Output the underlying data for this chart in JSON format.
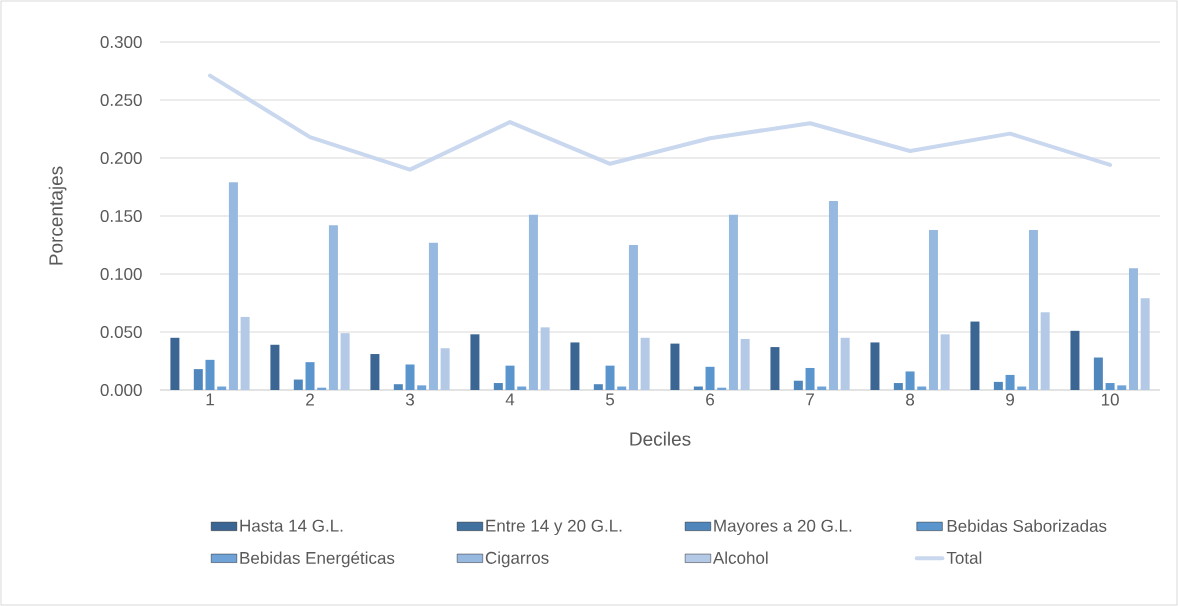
{
  "chart_data": {
    "type": "bar",
    "xlabel": "Deciles",
    "ylabel": "Porcentajes",
    "categories": [
      "1",
      "2",
      "3",
      "4",
      "5",
      "6",
      "7",
      "8",
      "9",
      "10"
    ],
    "series": [
      {
        "name": "Hasta 14 G.L.",
        "color": "#3b6592",
        "values": [
          0.045,
          0.039,
          0.031,
          0.048,
          0.041,
          0.04,
          0.037,
          0.041,
          0.059,
          0.051
        ]
      },
      {
        "name": "Entre 14 y 20 G.L.",
        "color": "#40719f",
        "values": [
          0,
          0,
          0,
          0,
          0,
          0,
          0,
          0,
          0,
          0
        ]
      },
      {
        "name": "Mayores a 20 G.L.",
        "color": "#4f86bb",
        "values": [
          0.018,
          0.009,
          0.005,
          0.006,
          0.005,
          0.003,
          0.008,
          0.006,
          0.007,
          0.028
        ]
      },
      {
        "name": "Bebidas Saborizadas",
        "color": "#5a96cd",
        "values": [
          0.026,
          0.024,
          0.022,
          0.021,
          0.021,
          0.02,
          0.019,
          0.016,
          0.013,
          0.006
        ]
      },
      {
        "name": "Bebidas Energéticas",
        "color": "#6fa3d8",
        "values": [
          0.003,
          0.002,
          0.004,
          0.003,
          0.003,
          0.002,
          0.003,
          0.003,
          0.003,
          0.004
        ]
      },
      {
        "name": "Cigarros",
        "color": "#97b8df",
        "values": [
          0.179,
          0.142,
          0.127,
          0.151,
          0.125,
          0.151,
          0.163,
          0.138,
          0.138,
          0.105
        ]
      },
      {
        "name": "Alcohol",
        "color": "#b3c9e6",
        "values": [
          0.063,
          0.049,
          0.036,
          0.054,
          0.045,
          0.044,
          0.045,
          0.048,
          0.067,
          0.079
        ]
      },
      {
        "name": "Total",
        "type": "line",
        "color": "#c9d8ee",
        "values": [
          0.271,
          0.218,
          0.19,
          0.231,
          0.195,
          0.217,
          0.23,
          0.206,
          0.221,
          0.194
        ]
      }
    ],
    "ylim": [
      0,
      0.3
    ],
    "yticks": [
      {
        "value": 0,
        "label": "0.000"
      },
      {
        "value": 0.05,
        "label": "0.050"
      },
      {
        "value": 0.1,
        "label": "0.100"
      },
      {
        "value": 0.15,
        "label": "0.150"
      },
      {
        "value": 0.2,
        "label": "0.200"
      },
      {
        "value": 0.25,
        "label": "0.250"
      },
      {
        "value": 0.3,
        "label": "0.300"
      }
    ],
    "grid": "y",
    "legend": "bottom"
  }
}
